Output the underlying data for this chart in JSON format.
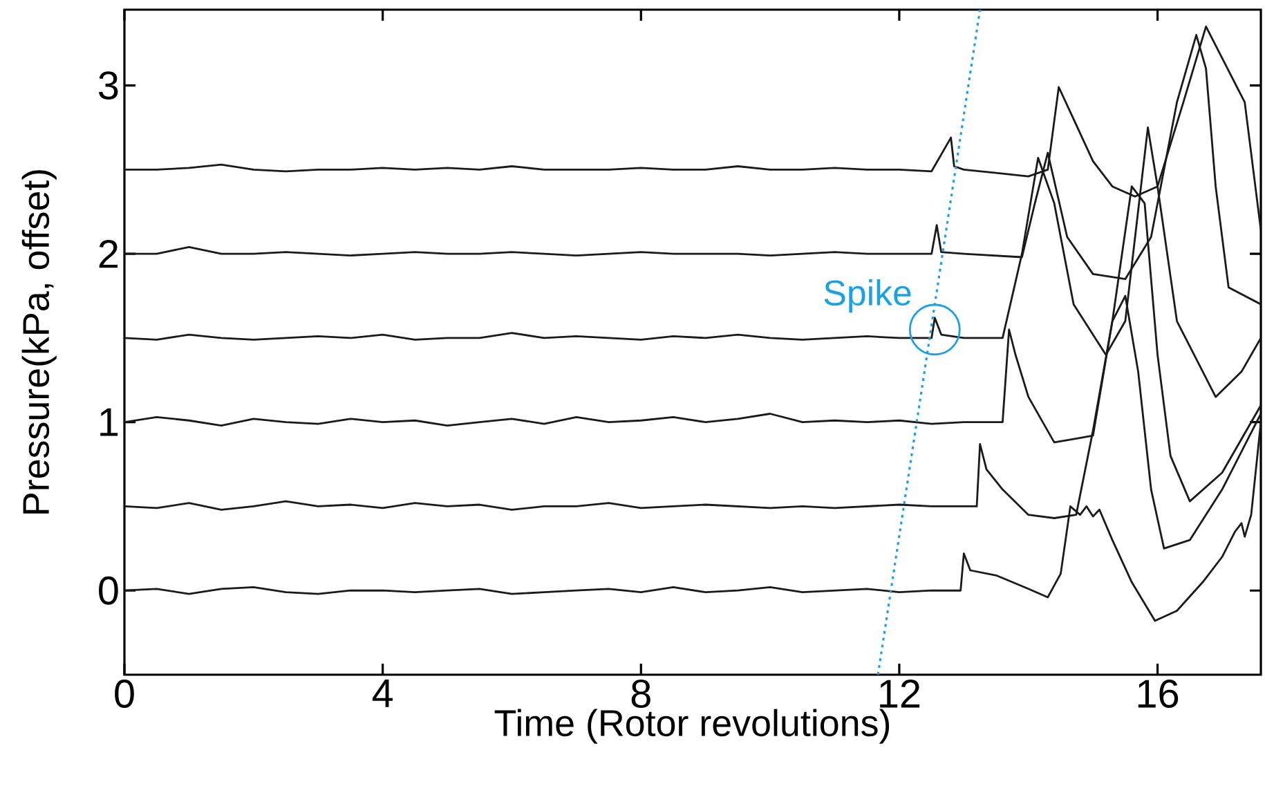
{
  "chart_data": {
    "type": "line",
    "xlabel": "Time (Rotor revolutions)",
    "ylabel": "Pressure(kPa, offset)",
    "xlim": [
      0,
      17.6
    ],
    "ylim": [
      -0.5,
      3.45
    ],
    "xticks": [
      0,
      4,
      8,
      12,
      16
    ],
    "yticks": [
      0,
      1,
      2,
      3
    ],
    "grid": false,
    "marker": "none",
    "annotations": [
      {
        "text": "Spike",
        "x": 12.55,
        "y": 1.55
      }
    ],
    "series": [
      {
        "color": "#1a1a1a",
        "x": [
          0,
          0.5,
          1,
          1.5,
          2,
          2.5,
          3,
          3.5,
          4,
          4.5,
          5,
          5.5,
          6,
          6.5,
          7,
          7.5,
          8,
          8.5,
          9,
          9.5,
          10,
          10.5,
          11,
          11.5,
          12,
          12.5,
          12.95,
          13.0,
          13.1,
          13.5,
          14.0,
          14.3,
          14.5,
          14.65,
          14.8,
          14.9,
          15.0,
          15.1,
          15.3,
          15.6,
          15.96,
          16.3,
          16.7,
          17.0,
          17.2,
          17.3,
          17.35,
          17.45,
          17.6
        ],
        "values": [
          0,
          0.01,
          -0.02,
          0.01,
          0.02,
          -0.01,
          -0.02,
          0,
          0,
          -0.01,
          0,
          0.01,
          -0.02,
          -0.01,
          0,
          0.01,
          -0.01,
          0.02,
          -0.01,
          0,
          0.02,
          -0.01,
          0,
          0.01,
          -0.01,
          0,
          0,
          0.22,
          0.12,
          0.09,
          0.01,
          -0.04,
          0.1,
          0.5,
          0.45,
          0.5,
          0.44,
          0.48,
          0.3,
          0.05,
          -0.18,
          -0.12,
          0.05,
          0.2,
          0.35,
          0.4,
          0.32,
          0.45,
          1.0
        ]
      },
      {
        "color": "#1a1a1a",
        "x": [
          0,
          0.5,
          1,
          1.5,
          2,
          2.5,
          3,
          3.5,
          4,
          4.5,
          5,
          5.5,
          6,
          6.5,
          7,
          7.5,
          8,
          8.5,
          9,
          9.5,
          10,
          10.5,
          11,
          11.5,
          12,
          12.5,
          13.2,
          13.25,
          13.35,
          13.6,
          14.0,
          14.4,
          14.74,
          15.0,
          15.3,
          15.5,
          15.7,
          15.9,
          16.1,
          16.5,
          17.0,
          17.6
        ],
        "values": [
          0.5,
          0.49,
          0.52,
          0.48,
          0.5,
          0.53,
          0.5,
          0.51,
          0.49,
          0.52,
          0.5,
          0.51,
          0.48,
          0.5,
          0.5,
          0.52,
          0.49,
          0.5,
          0.51,
          0.5,
          0.49,
          0.5,
          0.49,
          0.5,
          0.51,
          0.5,
          0.5,
          0.87,
          0.72,
          0.6,
          0.45,
          0.43,
          0.45,
          0.95,
          1.6,
          1.75,
          1.3,
          0.6,
          0.25,
          0.3,
          0.6,
          1.05
        ]
      },
      {
        "color": "#1a1a1a",
        "x": [
          0,
          0.5,
          1,
          1.5,
          2,
          2.5,
          3,
          3.5,
          4,
          4.5,
          5,
          5.5,
          6,
          6.5,
          7,
          7.5,
          8,
          8.5,
          9,
          9.5,
          10,
          10.5,
          11,
          11.5,
          12,
          12.5,
          13.0,
          13.6,
          13.7,
          13.8,
          14.0,
          14.4,
          14.7,
          15.0,
          15.3,
          15.6,
          15.8,
          16.0,
          16.2,
          16.5,
          17.0,
          17.6
        ],
        "values": [
          1.0,
          1.03,
          1.01,
          0.98,
          1.02,
          1.0,
          0.99,
          1.02,
          1.0,
          1.01,
          0.98,
          1.0,
          1.02,
          0.99,
          1.03,
          1.0,
          1.01,
          1.03,
          1.0,
          1.02,
          1.05,
          1.0,
          1.01,
          1.0,
          1.01,
          0.99,
          1.0,
          1.0,
          1.55,
          1.4,
          1.15,
          0.88,
          0.9,
          0.92,
          1.6,
          2.4,
          2.3,
          1.4,
          0.8,
          0.53,
          0.7,
          1.1
        ]
      },
      {
        "color": "#1a1a1a",
        "x": [
          0,
          0.5,
          1,
          1.5,
          2,
          2.5,
          3,
          3.5,
          4,
          4.5,
          5,
          5.5,
          6,
          6.5,
          7,
          7.5,
          8,
          8.5,
          9,
          9.5,
          10,
          10.5,
          11,
          11.5,
          12,
          12.5,
          12.55,
          12.65,
          13.0,
          13.6,
          13.9,
          14.15,
          14.4,
          14.7,
          15.2,
          15.5,
          15.85,
          16.0,
          16.3,
          16.9,
          17.3,
          17.6
        ],
        "values": [
          1.5,
          1.49,
          1.52,
          1.5,
          1.49,
          1.5,
          1.51,
          1.5,
          1.52,
          1.49,
          1.5,
          1.5,
          1.53,
          1.5,
          1.51,
          1.5,
          1.49,
          1.51,
          1.5,
          1.52,
          1.5,
          1.49,
          1.5,
          1.51,
          1.5,
          1.5,
          1.62,
          1.52,
          1.5,
          1.5,
          2.0,
          2.57,
          2.3,
          1.7,
          1.4,
          1.6,
          2.75,
          2.4,
          1.6,
          1.15,
          1.3,
          1.5
        ]
      },
      {
        "color": "#1a1a1a",
        "x": [
          0,
          0.5,
          1,
          1.5,
          2,
          2.5,
          3,
          3.5,
          4,
          4.5,
          5,
          5.5,
          6,
          6.5,
          7,
          7.5,
          8,
          8.5,
          9,
          9.5,
          10,
          10.5,
          11,
          11.5,
          12,
          12.5,
          12.58,
          12.65,
          13.0,
          13.9,
          14.1,
          14.3,
          14.6,
          15.0,
          15.5,
          15.9,
          16.3,
          16.6,
          16.75,
          16.9,
          17.1,
          17.6
        ],
        "values": [
          2.0,
          2.0,
          2.04,
          2.0,
          2.0,
          2.01,
          2.0,
          1.99,
          2.0,
          2.01,
          2.0,
          2.0,
          2.01,
          2.0,
          1.99,
          2.0,
          2.01,
          2.0,
          2.0,
          2.0,
          1.99,
          2.0,
          2.01,
          2.0,
          2.0,
          2.0,
          2.17,
          2.01,
          2.0,
          1.98,
          2.3,
          2.6,
          2.1,
          1.88,
          1.85,
          2.1,
          2.9,
          3.3,
          3.1,
          2.4,
          1.8,
          1.7
        ]
      },
      {
        "color": "#1a1a1a",
        "x": [
          0,
          0.5,
          1,
          1.5,
          2,
          2.5,
          3,
          3.5,
          4,
          4.5,
          5,
          5.5,
          6,
          6.5,
          7,
          7.5,
          8,
          8.5,
          9,
          9.5,
          10,
          10.5,
          11,
          11.5,
          12,
          12.5,
          12.8,
          12.85,
          13.0,
          13.5,
          14.0,
          14.3,
          14.47,
          14.7,
          15.0,
          15.3,
          15.65,
          16.0,
          16.4,
          16.75,
          16.95,
          17.15,
          17.35,
          17.6
        ],
        "values": [
          2.5,
          2.5,
          2.51,
          2.53,
          2.5,
          2.49,
          2.5,
          2.5,
          2.51,
          2.5,
          2.51,
          2.5,
          2.52,
          2.5,
          2.5,
          2.5,
          2.51,
          2.5,
          2.5,
          2.52,
          2.5,
          2.5,
          2.51,
          2.5,
          2.5,
          2.49,
          2.69,
          2.52,
          2.5,
          2.48,
          2.46,
          2.5,
          2.99,
          2.8,
          2.55,
          2.4,
          2.34,
          2.4,
          2.9,
          3.35,
          null,
          null,
          2.9,
          2.14
        ]
      },
      {
        "color": "#1ba1e2",
        "line_style": "dotted",
        "x": [
          11.67,
          13.25
        ],
        "values": [
          -0.5,
          3.45
        ]
      }
    ]
  }
}
